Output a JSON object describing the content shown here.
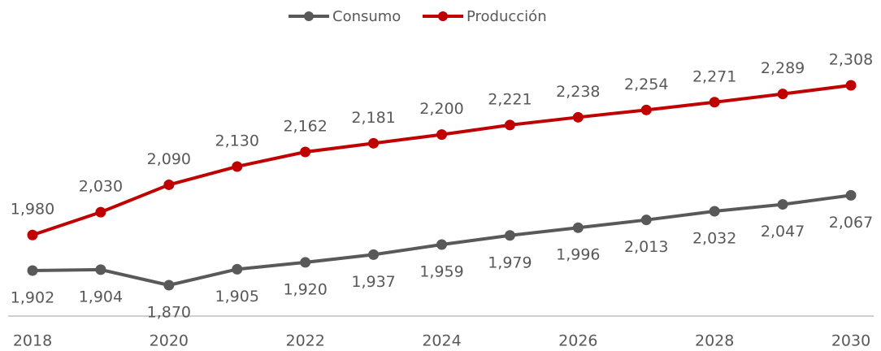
{
  "chart_data": {
    "type": "line",
    "categories": [
      "2018",
      null,
      "2020",
      null,
      "2022",
      null,
      "2024",
      null,
      "2026",
      null,
      "2028",
      null,
      "2030"
    ],
    "series": [
      {
        "name": "Consumo",
        "color": "#595959",
        "values": [
          1902,
          1904,
          1870,
          1905,
          1920,
          1937,
          1959,
          1979,
          1996,
          2013,
          2032,
          2047,
          2067
        ],
        "value_labels": [
          "1,902",
          "1,904",
          "1,870",
          "1,905",
          "1,920",
          "1,937",
          "1,959",
          "1,979",
          "1,996",
          "2,013",
          "2,032",
          "2,047",
          "2,067"
        ]
      },
      {
        "name": "Producción",
        "color": "#c00000",
        "values": [
          1980,
          2030,
          2090,
          2130,
          2162,
          2181,
          2200,
          2221,
          2238,
          2254,
          2271,
          2289,
          2308
        ],
        "value_labels": [
          "1,980",
          "2,030",
          "2,090",
          "2,130",
          "2,162",
          "2,181",
          "2,200",
          "2,221",
          "2,238",
          "2,254",
          "2,271",
          "2,289",
          "2,308"
        ]
      }
    ],
    "legend": "top"
  }
}
